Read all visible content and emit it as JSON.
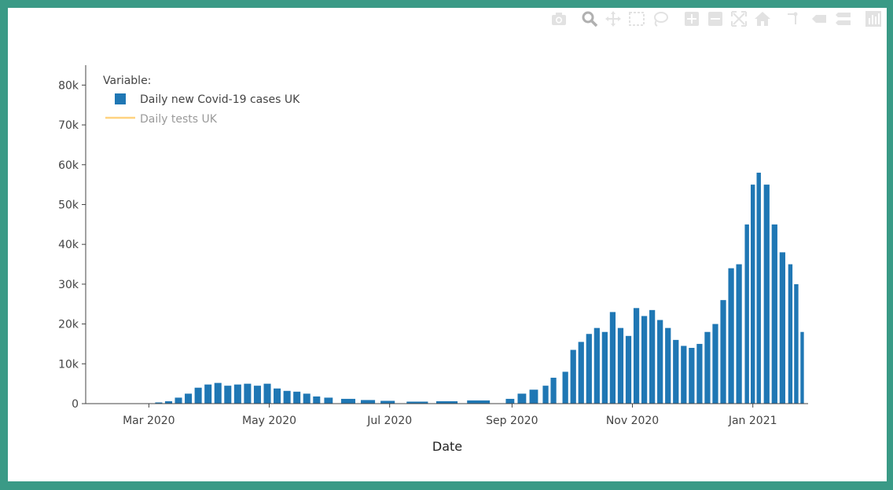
{
  "modebar": {
    "buttons": [
      "camera-icon",
      "zoom-icon",
      "pan-icon",
      "box-select-icon",
      "lasso-select-icon",
      "zoom-in-icon",
      "zoom-out-icon",
      "autoscale-icon",
      "reset-axes-icon",
      "spike-lines-icon",
      "hover-closest-icon",
      "hover-compare-icon",
      "plotly-logo-icon"
    ]
  },
  "colors": {
    "bar": "#1f77b4",
    "line": "#ffd27f",
    "frame": "#3a9a86",
    "axis": "#444444",
    "legend_hidden": "#9a9a9a"
  },
  "chart_data": {
    "type": "bar",
    "xlabel": "Date",
    "legend": {
      "title": "Variable:",
      "placement": "top-left",
      "entries": [
        {
          "name": "Daily new Covid-19 cases UK",
          "marker": "bar",
          "visible": true
        },
        {
          "name": "Daily tests UK",
          "marker": "line",
          "visible": false
        }
      ]
    },
    "x_ticks": [
      "Mar 2020",
      "May 2020",
      "Jul 2020",
      "Sep 2020",
      "Nov 2020",
      "Jan 2021"
    ],
    "y_ticks": [
      "0",
      "10k",
      "20k",
      "30k",
      "40k",
      "50k",
      "60k",
      "70k",
      "80k"
    ],
    "ylim": [
      0,
      85000
    ],
    "grid": false,
    "xlim": [
      "2020-01-29",
      "2021-01-29"
    ],
    "series": [
      {
        "name": "Daily new Covid-19 cases UK",
        "dates": [
          "2020-02-25",
          "2020-03-01",
          "2020-03-06",
          "2020-03-11",
          "2020-03-16",
          "2020-03-21",
          "2020-03-26",
          "2020-03-31",
          "2020-04-05",
          "2020-04-10",
          "2020-04-15",
          "2020-04-20",
          "2020-04-25",
          "2020-04-30",
          "2020-05-05",
          "2020-05-10",
          "2020-05-15",
          "2020-05-20",
          "2020-05-25",
          "2020-05-31",
          "2020-06-10",
          "2020-06-20",
          "2020-06-30",
          "2020-07-15",
          "2020-07-30",
          "2020-08-15",
          "2020-08-31",
          "2020-09-06",
          "2020-09-12",
          "2020-09-18",
          "2020-09-22",
          "2020-09-28",
          "2020-10-02",
          "2020-10-06",
          "2020-10-10",
          "2020-10-14",
          "2020-10-18",
          "2020-10-22",
          "2020-10-26",
          "2020-10-30",
          "2020-11-03",
          "2020-11-07",
          "2020-11-11",
          "2020-11-15",
          "2020-11-19",
          "2020-11-23",
          "2020-11-27",
          "2020-12-01",
          "2020-12-05",
          "2020-12-09",
          "2020-12-13",
          "2020-12-17",
          "2020-12-21",
          "2020-12-25",
          "2020-12-29",
          "2021-01-01",
          "2021-01-04",
          "2021-01-08",
          "2021-01-12",
          "2021-01-16",
          "2021-01-20",
          "2021-01-23",
          "2021-01-26"
        ],
        "values": [
          0,
          100,
          300,
          600,
          1500,
          2500,
          4000,
          4800,
          5200,
          4500,
          4800,
          5000,
          4500,
          5000,
          3800,
          3200,
          3000,
          2500,
          1800,
          1500,
          1200,
          900,
          700,
          500,
          600,
          800,
          1200,
          2500,
          3500,
          4500,
          6500,
          8000,
          13500,
          15500,
          17500,
          19000,
          18000,
          23000,
          19000,
          17000,
          24000,
          22000,
          23500,
          21000,
          19000,
          16000,
          14500,
          14000,
          15000,
          18000,
          20000,
          26000,
          34000,
          35000,
          45000,
          55000,
          58000,
          55000,
          45000,
          38000,
          35000,
          30000,
          18000
        ]
      },
      {
        "name": "Daily tests UK",
        "dates": [],
        "values": []
      }
    ]
  }
}
